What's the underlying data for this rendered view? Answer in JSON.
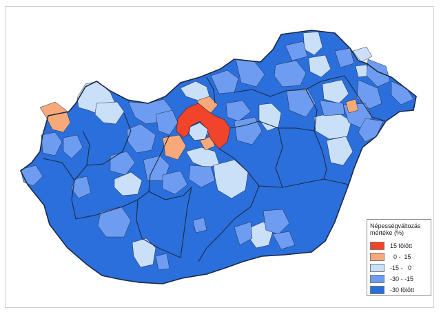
{
  "legend": {
    "title": "Népességváltozás mértéke (%)",
    "items": [
      {
        "label": "15 fölött",
        "color": "#f2432b"
      },
      {
        "label": "  0 -  15",
        "color": "#f7a97a"
      },
      {
        "label": "-15 -   0",
        "color": "#c9e0f8"
      },
      {
        "label": "-30 - -15",
        "color": "#6e9cf0"
      },
      {
        "label": "-30 fölött",
        "color": "#2a6fdb"
      }
    ]
  },
  "colors": {
    "border": "#1e2a44",
    "background": "#ffffff"
  }
}
